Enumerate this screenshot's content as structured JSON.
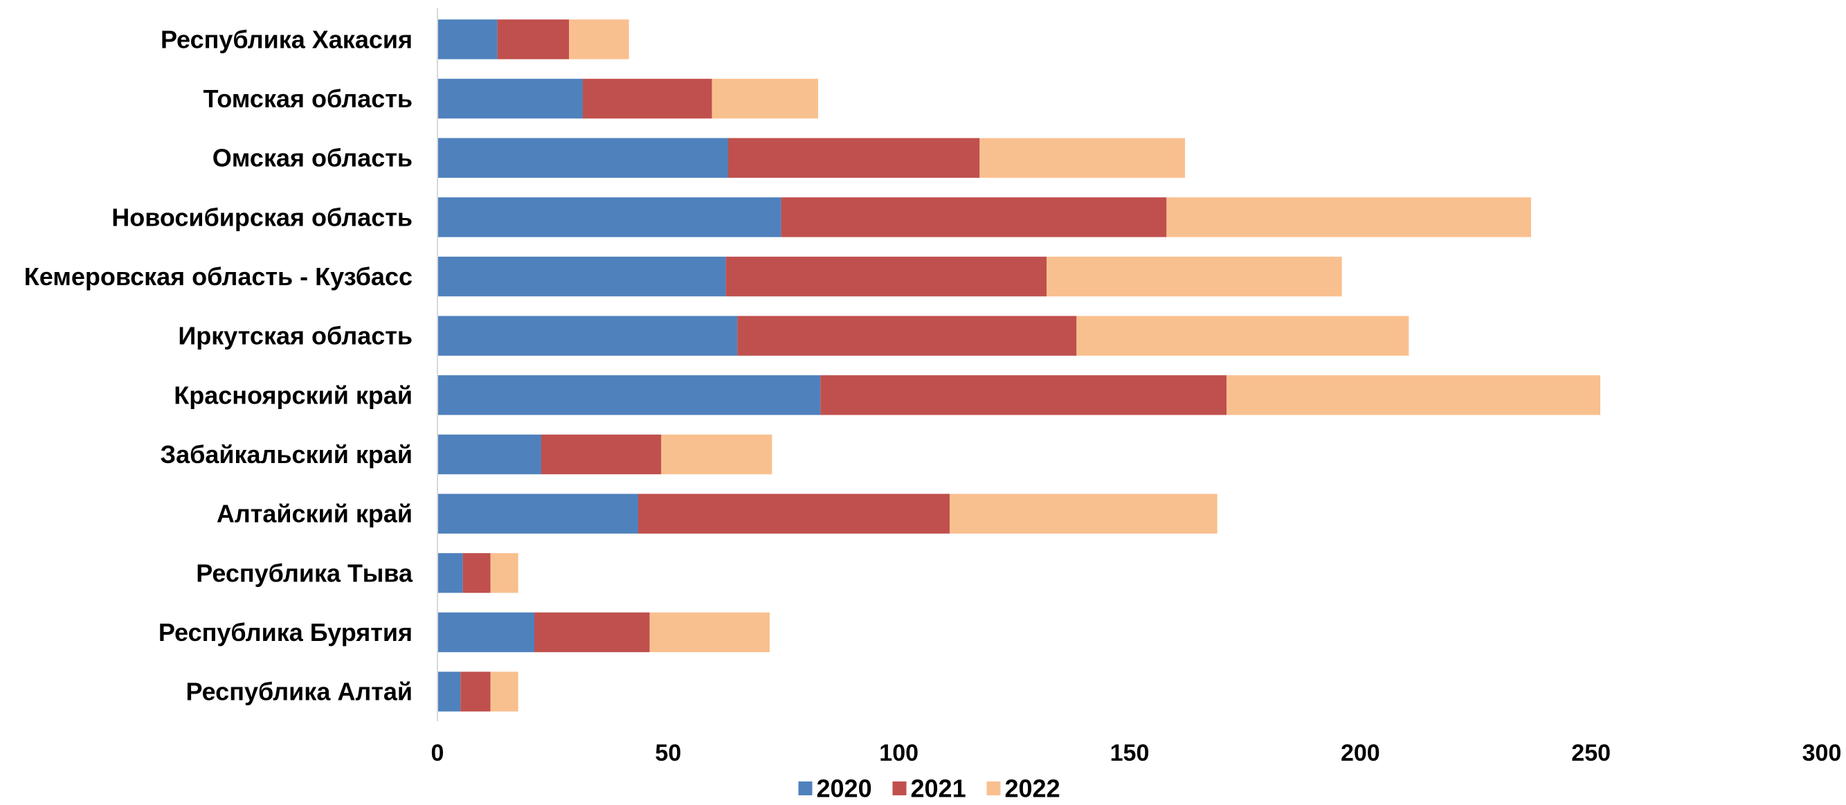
{
  "chart_data": {
    "type": "bar",
    "orientation": "horizontal",
    "stacked": true,
    "title": "",
    "xlabel": "",
    "ylabel": "",
    "xlim": [
      0,
      300
    ],
    "xticks": [
      0,
      50,
      100,
      150,
      200,
      250,
      300
    ],
    "grid": false,
    "legend_position": "bottom",
    "categories": [
      "Республика Хакасия",
      "Томская область",
      "Омская область",
      "Новосибирская область",
      "Кемеровская область - Кузбасс",
      "Иркутская область",
      "Красноярский край",
      "Забайкальский край",
      "Алтайский край",
      "Республика Тыва",
      "Республика Бурятия",
      "Республика Алтай"
    ],
    "series": [
      {
        "name": "2020",
        "color": "#4F81BD",
        "values": [
          13,
          31.5,
          63,
          74.5,
          62.5,
          65,
          83,
          22.5,
          43.5,
          5.5,
          21,
          5
        ]
      },
      {
        "name": "2021",
        "color": "#C0504D",
        "values": [
          15.5,
          28,
          54.5,
          83.5,
          69.5,
          73.5,
          88,
          26,
          67.5,
          6,
          25,
          6.5
        ]
      },
      {
        "name": "2022",
        "color": "#F9C08F",
        "values": [
          13,
          23,
          44.5,
          79,
          64,
          72,
          81,
          24,
          58,
          6,
          26,
          6
        ]
      }
    ]
  }
}
